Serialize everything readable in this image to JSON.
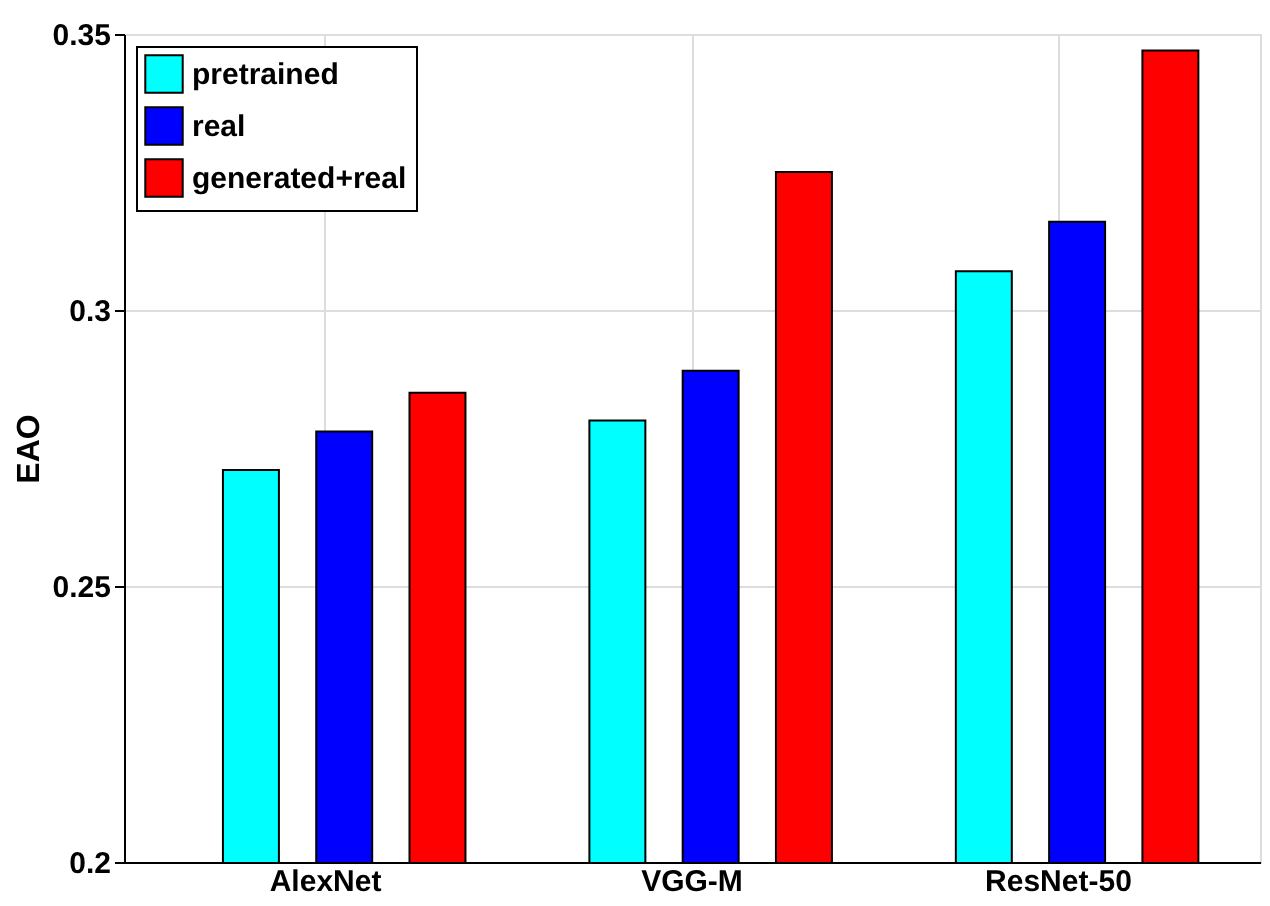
{
  "chart_data": {
    "type": "bar",
    "ylabel": "EAO",
    "categories": [
      "AlexNet",
      "VGG-M",
      "ResNet-50"
    ],
    "series": [
      {
        "name": "pretrained",
        "color": "#00ffff",
        "values": [
          0.271,
          0.28,
          0.307
        ]
      },
      {
        "name": "real",
        "color": "#0000ff",
        "values": [
          0.278,
          0.289,
          0.316
        ]
      },
      {
        "name": "generated+real",
        "color": "#ff0000",
        "values": [
          0.285,
          0.325,
          0.347
        ]
      }
    ],
    "ylim": [
      0.2,
      0.35
    ],
    "yticks": [
      {
        "value": 0.2,
        "label": "0.2"
      },
      0.25,
      {
        "value": 0.3,
        "label": "0.3"
      },
      0.35
    ],
    "grid": true,
    "legend": "top left"
  }
}
